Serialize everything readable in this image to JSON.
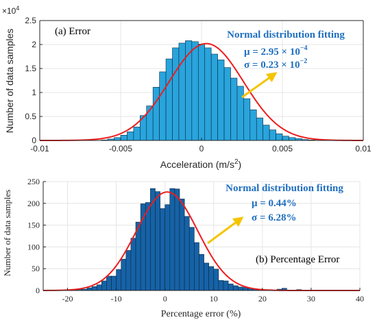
{
  "colors": {
    "bars_a": "#29a4dc",
    "bars_b": "#1662a6",
    "bar_edge": "#0b2942",
    "fit_curve": "#ee1c1c",
    "annotation_text": "#1f6fc0",
    "arrow": "#f5c400",
    "grid": "#e4e4e4",
    "axis": "#262626"
  },
  "chart_data": [
    {
      "type": "bar",
      "panel_label": "(a) Error",
      "xlabel": "Acceleration (m/s",
      "xlabel_sup": "2",
      "xlabel_close": ")",
      "ylabel": "Number of data samples",
      "y_multiplier": "×10",
      "y_multiplier_exp": "4",
      "xlim": [
        -0.01,
        0.01
      ],
      "ylim": [
        0,
        2.5
      ],
      "x_ticks": [
        -0.01,
        -0.005,
        0,
        0.005,
        0.01
      ],
      "x_tick_labels": [
        "-0.01",
        "-0.005",
        "0",
        "0.005",
        "0.01"
      ],
      "y_ticks": [
        0,
        0.5,
        1,
        1.5,
        2,
        2.5
      ],
      "y_tick_labels": [
        "0",
        "0.5",
        "1",
        "1.5",
        "2",
        "2.5"
      ],
      "grid": true,
      "bin_width": 0.0004,
      "bin_starts": [
        -0.0062,
        -0.0058,
        -0.0054,
        -0.005,
        -0.0046,
        -0.0042,
        -0.0038,
        -0.0034,
        -0.003,
        -0.0026,
        -0.0022,
        -0.0018,
        -0.0014,
        -0.001,
        -0.0006,
        -0.0002,
        0.0002,
        0.0006,
        0.001,
        0.0014,
        0.0018,
        0.0022,
        0.0026,
        0.003,
        0.0034,
        0.0038,
        0.0042,
        0.0046,
        0.005,
        0.0054,
        0.0058,
        0.0062,
        0.0066,
        0.007
      ],
      "values": [
        0.01,
        0.03,
        0.06,
        0.11,
        0.18,
        0.28,
        0.52,
        0.72,
        1.11,
        1.43,
        1.7,
        1.93,
        2.03,
        2.08,
        2.06,
        2.01,
        1.93,
        1.8,
        1.68,
        1.52,
        1.3,
        1.13,
        0.87,
        0.64,
        0.47,
        0.32,
        0.22,
        0.14,
        0.09,
        0.06,
        0.04,
        0.02,
        0.01,
        0.005
      ],
      "fit": {
        "name": "Normal distribution fitting",
        "mu": 0.000295,
        "sigma": 0.0023,
        "peak": 2.02
      },
      "annotation": {
        "title": "Normal distribution fitting",
        "line1": "μ = 2.95 × 10",
        "line1_exp": "−4",
        "line2": "σ = 0.23 × 10",
        "line2_exp": "−2"
      }
    },
    {
      "type": "bar",
      "panel_label": "(b) Percentage Error",
      "xlabel": "Percentage error (%)",
      "ylabel": "Number of data samples",
      "xlim": [
        -25,
        40
      ],
      "ylim": [
        0,
        250
      ],
      "x_ticks": [
        -20,
        -10,
        0,
        10,
        20,
        30,
        40
      ],
      "x_tick_labels": [
        "-20",
        "-10",
        "0",
        "10",
        "20",
        "30",
        "40"
      ],
      "y_ticks": [
        0,
        50,
        100,
        150,
        200,
        250
      ],
      "y_tick_labels": [
        "0",
        "50",
        "100",
        "150",
        "200",
        "250"
      ],
      "grid": true,
      "bin_width": 1,
      "bin_starts": [
        -20,
        -19,
        -18,
        -17,
        -16,
        -15,
        -14,
        -13,
        -12,
        -11,
        -10,
        -9,
        -8,
        -7,
        -6,
        -5,
        -4,
        -3,
        -2,
        -1,
        0,
        1,
        2,
        3,
        4,
        5,
        6,
        7,
        8,
        9,
        10,
        11,
        12,
        13,
        14,
        15,
        16,
        17,
        18,
        19,
        20,
        21,
        22,
        23,
        24,
        25,
        26,
        27,
        28,
        29,
        30,
        31,
        32,
        33,
        34,
        35,
        36,
        37,
        38
      ],
      "values": [
        1,
        1,
        3,
        3,
        6,
        9,
        13,
        22,
        33,
        33,
        48,
        72,
        92,
        120,
        157,
        199,
        202,
        234,
        227,
        188,
        197,
        234,
        233,
        210,
        170,
        145,
        110,
        83,
        63,
        55,
        49,
        23,
        22,
        15,
        11,
        8,
        7,
        5,
        4,
        3,
        2,
        2,
        1,
        3,
        5,
        1,
        1,
        2,
        1,
        1,
        1,
        0,
        1,
        0,
        1,
        0,
        0,
        0,
        1
      ],
      "fit": {
        "name": "Normal distribution fitting",
        "mu": 0.44,
        "sigma": 6.28,
        "peak": 226
      },
      "annotation": {
        "title": "Normal distribution fitting",
        "line1": "μ = 0.44%",
        "line2": "σ = 6.28%"
      }
    }
  ]
}
